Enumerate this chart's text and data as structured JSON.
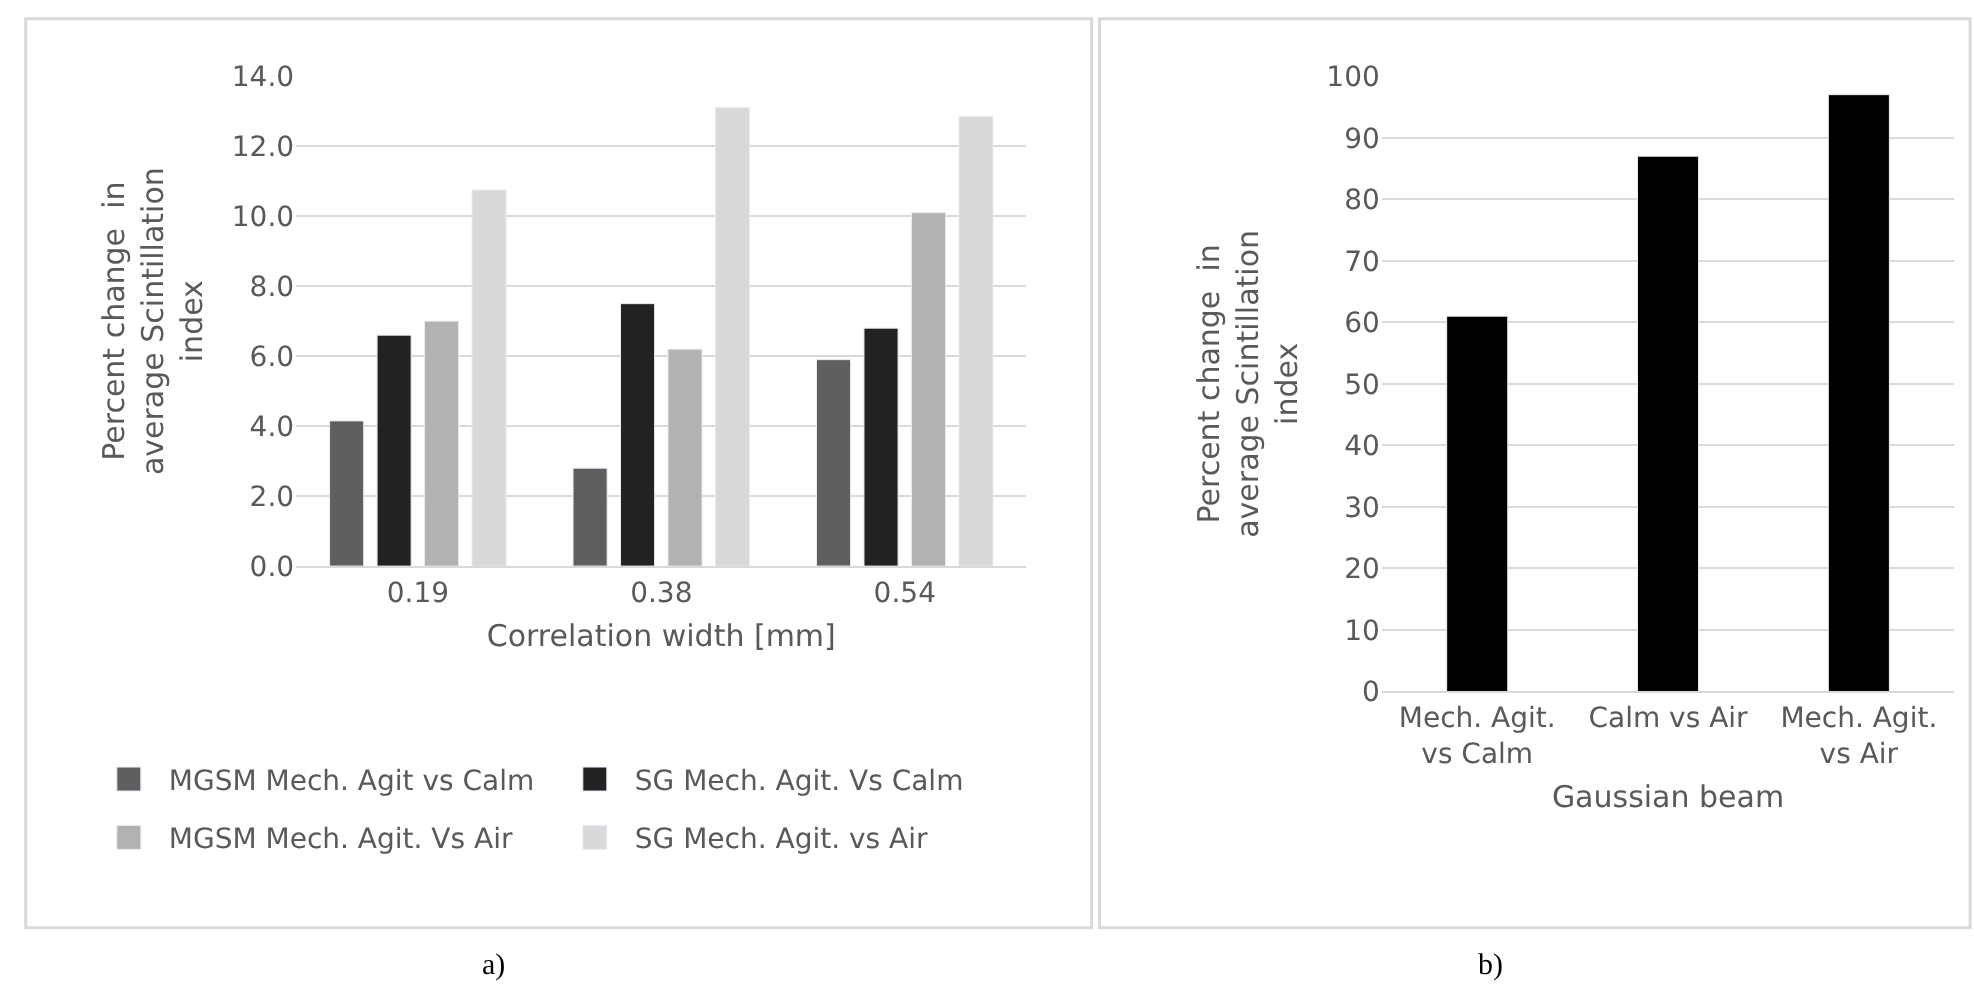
{
  "chart_data": [
    {
      "type": "bar",
      "categories": [
        "0.19",
        "0.38",
        "0.54"
      ],
      "xlabel": "Correlation width [mm]",
      "ylabel": "Percent change  in average Scintillation index",
      "series": [
        {
          "name": "MGSM Mech. Agit vs Calm",
          "color": "#5f5f5f",
          "values": [
            4.15,
            2.8,
            5.9
          ]
        },
        {
          "name": "SG Mech. Agit. Vs Calm",
          "color": "#222222",
          "values": [
            6.6,
            7.5,
            6.8
          ]
        },
        {
          "name": "MGSM Mech. Agit. Vs Air",
          "color": "#b2b2b2",
          "values": [
            7.0,
            6.2,
            10.1
          ]
        },
        {
          "name": "SG Mech. Agit. vs Air",
          "color": "#d9d9d9",
          "values": [
            10.75,
            13.1,
            12.85
          ]
        }
      ],
      "ylim": [
        0,
        14
      ],
      "yticks": [
        {
          "value": 0,
          "label": "0.0"
        },
        {
          "value": 2,
          "label": "2.0"
        },
        {
          "value": 4,
          "label": "4.0"
        },
        {
          "value": 6,
          "label": "6.0"
        },
        {
          "value": 8,
          "label": "8.0"
        },
        {
          "value": 10,
          "label": "10.0"
        },
        {
          "value": 12,
          "label": "12.0"
        },
        {
          "value": 14,
          "label": "14.0"
        }
      ],
      "grid": "y",
      "legend": "bottom",
      "annotations": [
        "a)"
      ]
    },
    {
      "type": "bar",
      "categories": [
        "Mech. Agit. vs Calm",
        "Calm vs Air",
        "Mech. Agit. vs Air"
      ],
      "xlabel": "Gaussian beam",
      "ylabel": "Percent change  in average Scintillation index",
      "series": [
        {
          "color": "#000000",
          "values": [
            61,
            87,
            97
          ]
        }
      ],
      "ylim": [
        0,
        100
      ],
      "yticks": [
        0,
        10,
        20,
        30,
        40,
        50,
        60,
        70,
        80,
        90,
        100
      ],
      "grid": "y",
      "legend": false,
      "annotations": [
        "b)"
      ]
    }
  ]
}
